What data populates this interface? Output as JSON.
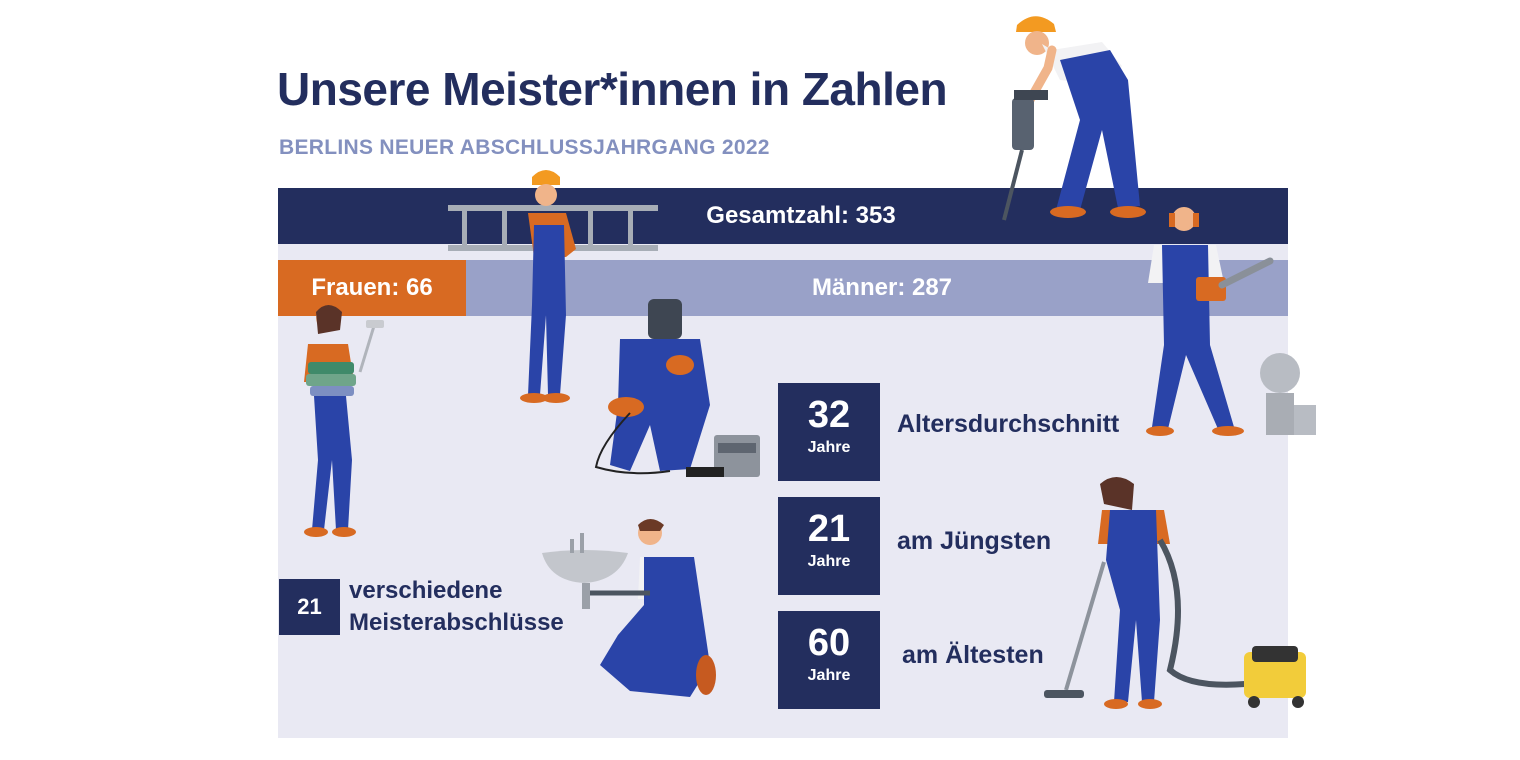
{
  "header": {
    "title": "Unsere Meister*innen in Zahlen",
    "subtitle": "BERLINS NEUER ABSCHLUSSJAHRGANG 2022"
  },
  "totals": {
    "total_label": "Gesamtzahl: 353",
    "women_label": "Frauen: 66",
    "men_label": "Männer: 287"
  },
  "stats": [
    {
      "value": "32",
      "unit": "Jahre",
      "label": "Altersdurchschnitt"
    },
    {
      "value": "21",
      "unit": "Jahre",
      "label": "am Jüngsten"
    },
    {
      "value": "60",
      "unit": "Jahre",
      "label": "am Ältesten"
    }
  ],
  "degrees": {
    "value": "21",
    "label_line1": "verschiedene",
    "label_line2": "Meisterabschlüsse"
  },
  "colors": {
    "navy": "#232e5e",
    "orange": "#d86a22",
    "lavender": "#99a1c8",
    "panel": "#e9e9f3",
    "overall_blue": "#2a44a8"
  },
  "illustrations": [
    "jackhammer-worker-icon",
    "ladder-worker-icon",
    "chainsaw-worker-icon",
    "painter-worker-icon",
    "welder-worker-icon",
    "plumber-worker-icon",
    "vacuum-cleaner-worker-icon"
  ]
}
